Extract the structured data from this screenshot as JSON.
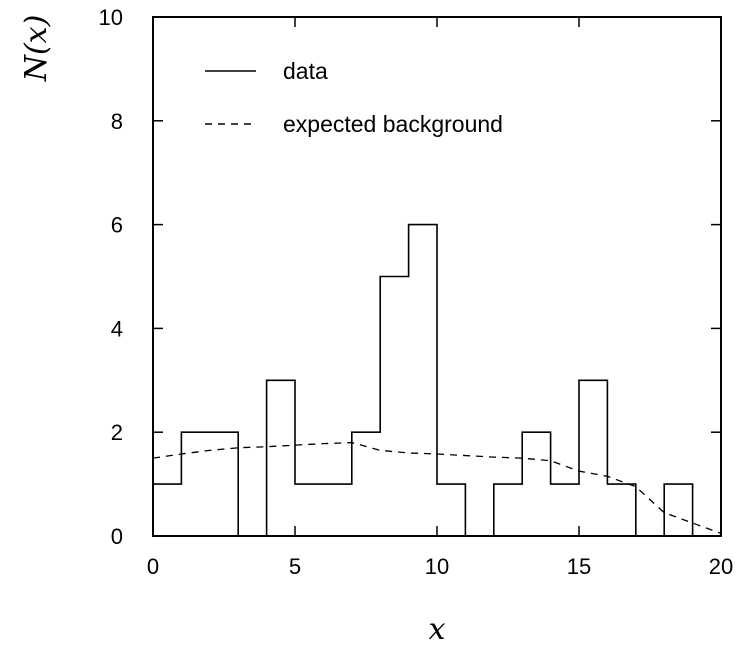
{
  "chart_data": {
    "type": "histogram",
    "title": "",
    "xlabel": "x",
    "ylabel": "N(x)",
    "xlim": [
      0,
      20
    ],
    "ylim": [
      0,
      10
    ],
    "x_ticks": [
      "0",
      "5",
      "10",
      "15",
      "20"
    ],
    "y_ticks": [
      "0",
      "2",
      "4",
      "6",
      "8",
      "10"
    ],
    "grid": false,
    "legend_position": "top-left",
    "bin_edges": [
      0,
      1,
      2,
      3,
      4,
      5,
      6,
      7,
      8,
      9,
      10,
      11,
      12,
      13,
      14,
      15,
      16,
      17,
      18,
      19,
      20
    ],
    "series": [
      {
        "name": "data",
        "style": "solid",
        "values": [
          1,
          2,
          2,
          0,
          3,
          1,
          1,
          2,
          5,
          6,
          1,
          0,
          1,
          2,
          1,
          3,
          1,
          0,
          1,
          0
        ]
      },
      {
        "name": "expected background",
        "style": "dashed",
        "x": [
          0,
          1,
          2,
          3,
          4,
          5,
          6,
          7,
          8,
          9,
          10,
          11,
          12,
          13,
          14,
          15,
          16,
          17,
          18,
          19,
          20
        ],
        "values": [
          1.5,
          1.58,
          1.65,
          1.7,
          1.72,
          1.75,
          1.78,
          1.8,
          1.65,
          1.6,
          1.58,
          1.55,
          1.52,
          1.5,
          1.45,
          1.25,
          1.15,
          0.95,
          0.45,
          0.25,
          0.05
        ]
      }
    ]
  }
}
